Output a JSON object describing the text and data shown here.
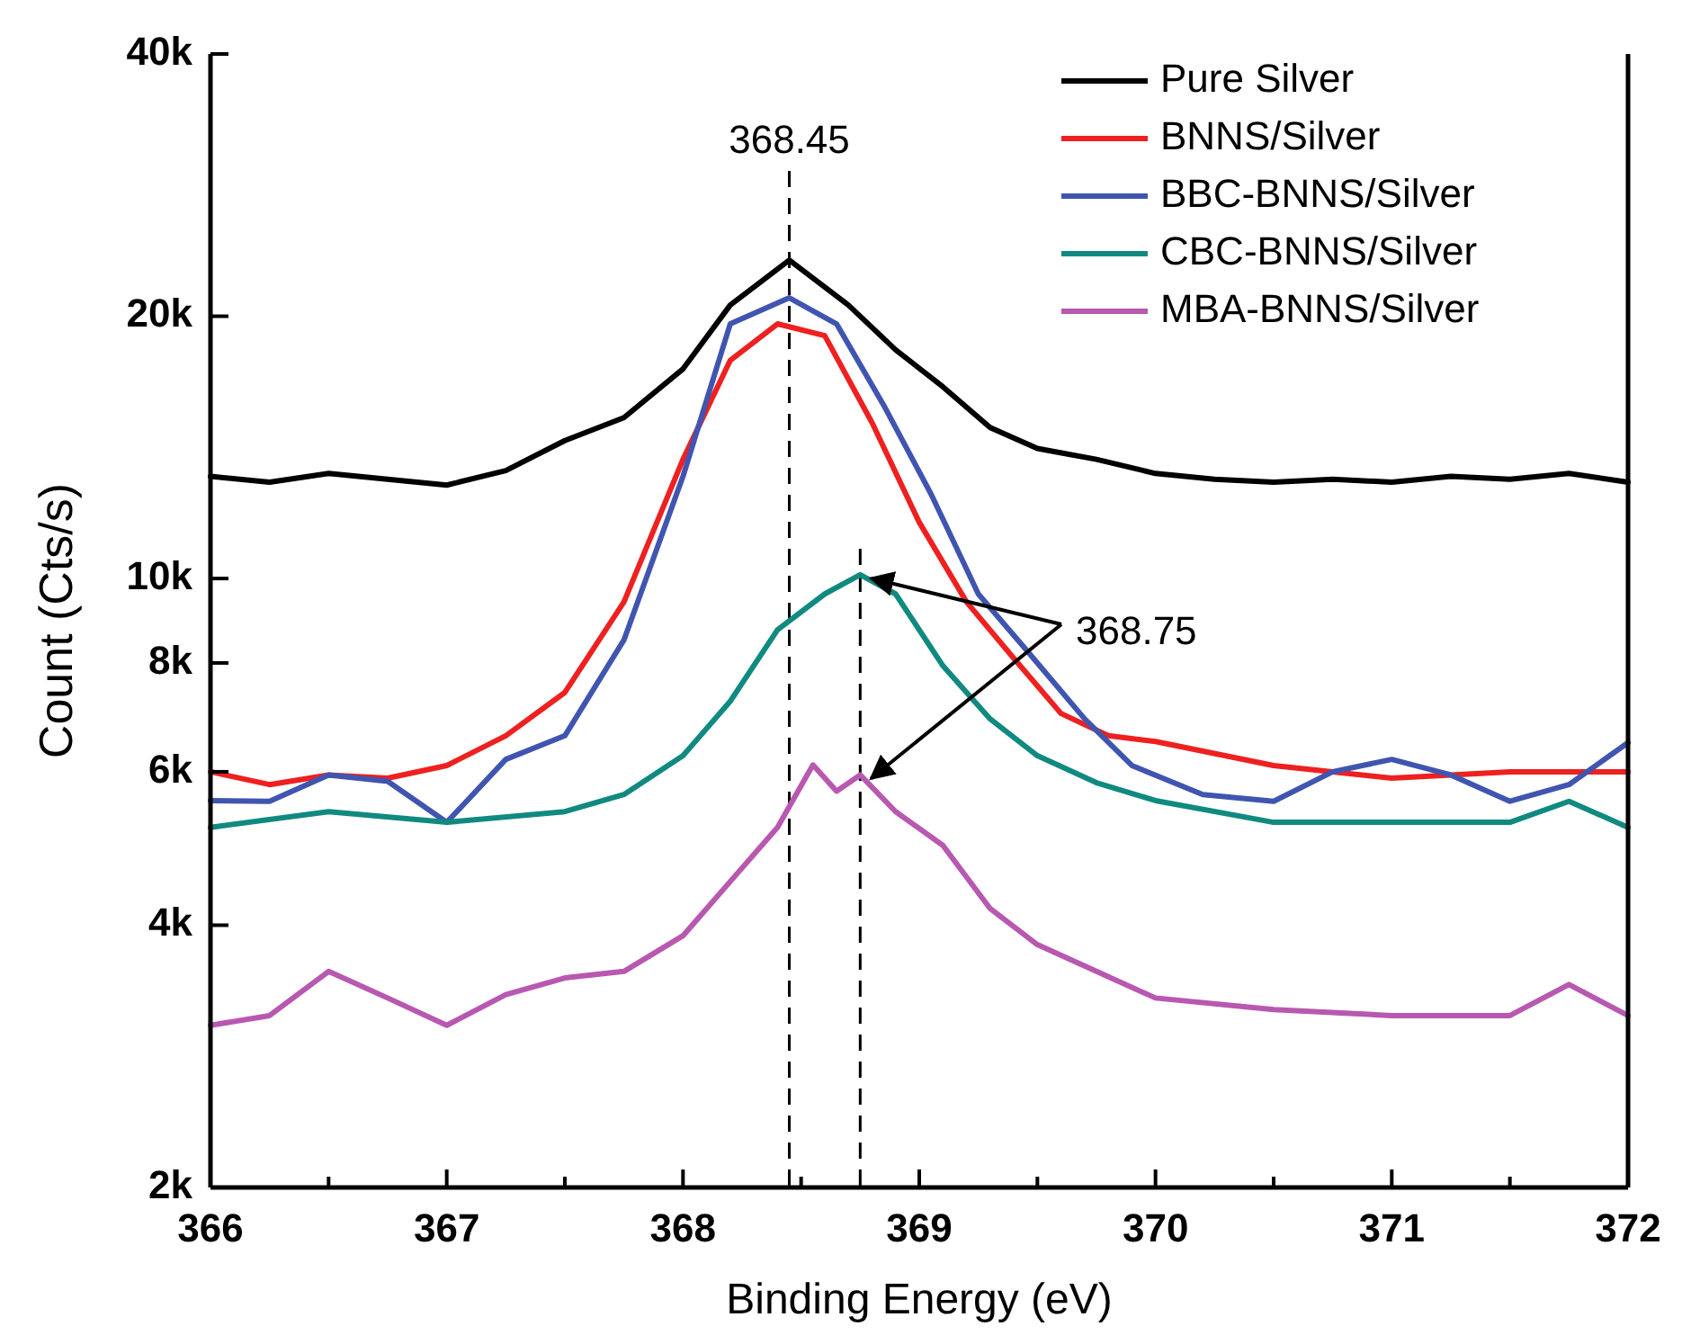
{
  "chart_data": {
    "type": "line",
    "xlabel": "Binding Energy (eV)",
    "ylabel": "Count (Cts/s)",
    "log": "y",
    "xlim": [
      366,
      372
    ],
    "xticks": [
      366,
      {
        "value": 366.5,
        "label": null
      },
      367,
      {
        "value": 367.5,
        "label": null
      },
      368,
      {
        "value": 368.5,
        "label": null
      },
      369,
      {
        "value": 369.5,
        "label": null
      },
      370,
      {
        "value": 370.5,
        "label": null
      },
      371,
      {
        "value": 371.5,
        "label": null
      },
      372
    ],
    "ylim": [
      2000,
      40000
    ],
    "yticks": [
      {
        "value": 2000,
        "label": "2k"
      },
      {
        "value": 4000,
        "label": "4k"
      },
      {
        "value": 6000,
        "label": "6k"
      },
      {
        "value": 8000,
        "label": "8k"
      },
      {
        "value": 10000,
        "label": "10k"
      },
      {
        "value": 20000,
        "label": "20k"
      },
      {
        "value": 40000,
        "label": "40k"
      }
    ],
    "grid": false,
    "legend": "top right",
    "marker": "none",
    "line_style": "solid",
    "ref_lines": [
      {
        "axis": "x",
        "value": 368.45,
        "label": "368.45",
        "line_style": "dashed",
        "color": "#000000"
      },
      {
        "axis": "x",
        "value": 368.75,
        "label": "368.75",
        "line_style": "dashed",
        "color": "#000000"
      }
    ],
    "series": [
      {
        "name": "Pure Silver",
        "color": "#000000",
        "x": [
          366,
          366.25,
          366.5,
          366.75,
          367,
          367.25,
          367.5,
          367.75,
          368,
          368.2,
          368.45,
          368.7,
          368.9,
          369.1,
          369.3,
          369.5,
          369.75,
          370,
          370.25,
          370.5,
          370.75,
          371,
          371.25,
          371.5,
          371.75,
          372
        ],
        "values": [
          13100,
          12900,
          13200,
          13000,
          12800,
          13300,
          14400,
          15300,
          17400,
          20600,
          23200,
          20600,
          18300,
          16600,
          14900,
          14100,
          13700,
          13200,
          13000,
          12900,
          13000,
          12900,
          13100,
          13000,
          13200,
          12900
        ]
      },
      {
        "name": "BNNS/Silver",
        "color": "#ee2020",
        "x": [
          366,
          366.25,
          366.5,
          366.75,
          367,
          367.25,
          367.5,
          367.75,
          368,
          368.2,
          368.4,
          368.6,
          368.8,
          369,
          369.2,
          369.4,
          369.6,
          369.8,
          370,
          370.5,
          371,
          371.5,
          372
        ],
        "values": [
          6000,
          5800,
          5950,
          5900,
          6100,
          6600,
          7400,
          9400,
          13700,
          17800,
          19600,
          19000,
          15100,
          11600,
          9400,
          8100,
          7000,
          6600,
          6500,
          6100,
          5900,
          6000,
          6000
        ]
      },
      {
        "name": "BBC-BNNS/Silver",
        "color": "#4055b0",
        "x": [
          366,
          366.25,
          366.5,
          366.75,
          367,
          367.25,
          367.5,
          367.75,
          368,
          368.2,
          368.45,
          368.65,
          368.85,
          369.05,
          369.25,
          369.45,
          369.7,
          369.9,
          370.2,
          370.5,
          370.75,
          371,
          371.25,
          371.5,
          371.75,
          372
        ],
        "values": [
          5560,
          5550,
          5950,
          5850,
          5250,
          6200,
          6600,
          8500,
          13100,
          19600,
          21000,
          19600,
          15800,
          12500,
          9600,
          8300,
          6900,
          6100,
          5650,
          5550,
          6000,
          6200,
          5950,
          5550,
          5800,
          6480
        ]
      },
      {
        "name": "CBC-BNNS/Silver",
        "color": "#108a80",
        "x": [
          366,
          366.5,
          367,
          367.5,
          367.75,
          368,
          368.2,
          368.4,
          368.6,
          368.75,
          368.9,
          369.1,
          369.3,
          369.5,
          369.75,
          370,
          370.5,
          371,
          371.5,
          371.75,
          372
        ],
        "values": [
          5180,
          5400,
          5250,
          5400,
          5650,
          6260,
          7230,
          8730,
          9600,
          10100,
          9600,
          7940,
          6900,
          6260,
          5830,
          5560,
          5250,
          5250,
          5250,
          5550,
          5180
        ]
      },
      {
        "name": "MBA-BNNS/Silver",
        "color": "#b858b0",
        "x": [
          366,
          366.25,
          366.5,
          366.75,
          367,
          367.25,
          367.5,
          367.75,
          368,
          368.2,
          368.4,
          368.55,
          368.65,
          368.75,
          368.9,
          369.1,
          369.3,
          369.5,
          369.75,
          370,
          370.5,
          371,
          371.5,
          371.75,
          372
        ],
        "values": [
          3070,
          3150,
          3540,
          3300,
          3070,
          3330,
          3480,
          3540,
          3890,
          4490,
          5180,
          6110,
          5700,
          5950,
          5400,
          4940,
          4180,
          3800,
          3540,
          3300,
          3200,
          3150,
          3150,
          3420,
          3150
        ]
      }
    ]
  }
}
